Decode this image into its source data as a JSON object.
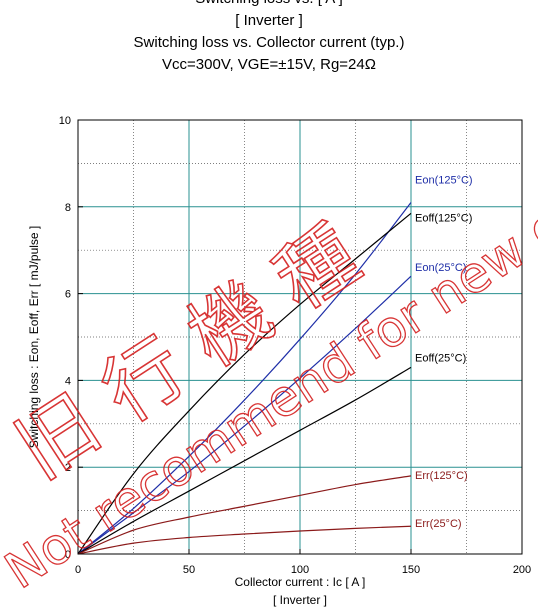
{
  "header": {
    "lines": [
      "Switching loss vs. [ A ]",
      "[ Inverter ]",
      "Switching loss  vs.  Collector current  (typ.)",
      "Vcc=300V, VGE=±15V, Rg=24Ω"
    ]
  },
  "watermark": {
    "line1": "旧 行 機 種",
    "line2": "Not recommend for new design."
  },
  "chart_data": {
    "type": "line",
    "xlabel": "Collector current  :  Ic  [ A ]",
    "xlabel_sub": "[ Inverter ]",
    "ylabel": "Switching loss  :  Eon, Eoff, Err  [ mJ/pulse ]",
    "xlim": [
      0,
      200
    ],
    "ylim": [
      0,
      10
    ],
    "x_ticks": [
      "0",
      "50",
      "100",
      "150",
      "200"
    ],
    "y_ticks": [
      "0",
      "2",
      "4",
      "6",
      "8",
      "10"
    ],
    "grid": true,
    "series": [
      {
        "name": "Eon(125°C)",
        "color": "#1f2fa8",
        "x": [
          0,
          25,
          50,
          75,
          100,
          125,
          150
        ],
        "y": [
          0,
          1.05,
          2.25,
          3.55,
          4.95,
          6.45,
          8.1
        ]
      },
      {
        "name": "Eoff(125°C)",
        "color": "#000000",
        "x": [
          0,
          25,
          50,
          75,
          100,
          125,
          150
        ],
        "y": [
          0,
          1.85,
          3.3,
          4.6,
          5.75,
          6.8,
          7.85
        ]
      },
      {
        "name": "Eon(25°C)",
        "color": "#1f2fa8",
        "x": [
          0,
          25,
          50,
          75,
          100,
          125,
          150
        ],
        "y": [
          0,
          0.95,
          1.9,
          2.95,
          4.05,
          5.2,
          6.4
        ]
      },
      {
        "name": "Eoff(25°C)",
        "color": "#000000",
        "x": [
          0,
          25,
          50,
          75,
          100,
          125,
          150
        ],
        "y": [
          0,
          0.75,
          1.45,
          2.15,
          2.85,
          3.55,
          4.3
        ]
      },
      {
        "name": "Err(125°C)",
        "color": "#8b1a1a",
        "x": [
          0,
          25,
          50,
          75,
          100,
          125,
          150
        ],
        "y": [
          0,
          0.55,
          0.85,
          1.1,
          1.35,
          1.6,
          1.8
        ]
      },
      {
        "name": "Err(25°C)",
        "color": "#8b1a1a",
        "x": [
          0,
          25,
          50,
          75,
          100,
          125,
          150
        ],
        "y": [
          0,
          0.25,
          0.38,
          0.46,
          0.53,
          0.59,
          0.64
        ]
      }
    ]
  }
}
